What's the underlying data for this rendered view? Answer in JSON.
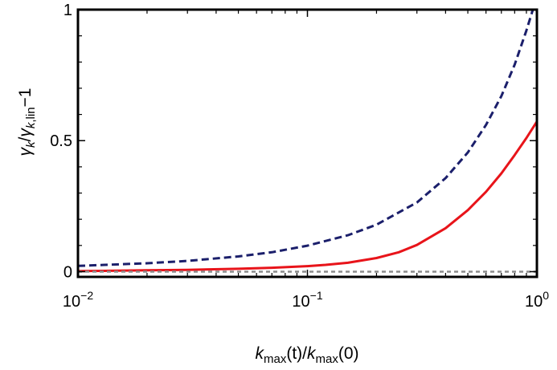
{
  "chart_data": {
    "type": "line",
    "xscale": "log",
    "xlim": [
      0.01,
      1
    ],
    "ylim": [
      -0.02,
      1
    ],
    "grid": false,
    "legend": "none",
    "xlabel": {
      "parts": [
        {
          "text": "k",
          "style": "italic"
        },
        {
          "text": "max",
          "style": "sub"
        },
        {
          "text": "(t)/",
          "style": "normal"
        },
        {
          "text": "k",
          "style": "italic"
        },
        {
          "text": "max",
          "style": "sub"
        },
        {
          "text": "(0)",
          "style": "normal"
        }
      ]
    },
    "ylabel": {
      "parts": [
        {
          "text": "γ",
          "style": "italic"
        },
        {
          "text": "k",
          "style": "sub-italic"
        },
        {
          "text": "/",
          "style": "normal"
        },
        {
          "text": "γ",
          "style": "italic"
        },
        {
          "text": "k",
          "style": "sub-italic"
        },
        {
          "text": ",lin",
          "style": "sub"
        },
        {
          "text": "−1",
          "style": "normal"
        }
      ]
    },
    "xticks": [
      {
        "value": 0.01,
        "base": "10",
        "exp": "−2"
      },
      {
        "value": 0.1,
        "base": "10",
        "exp": "−1"
      },
      {
        "value": 1,
        "base": "10",
        "exp": "0"
      }
    ],
    "yticks": [
      {
        "value": 0,
        "label": "0"
      },
      {
        "value": 0.5,
        "label": "0.5"
      },
      {
        "value": 1,
        "label": "1"
      }
    ],
    "series": [
      {
        "color": "#1b1f6b",
        "dash": "dashed",
        "x": [
          0.01,
          0.02,
          0.03,
          0.05,
          0.07,
          0.1,
          0.15,
          0.2,
          0.3,
          0.4,
          0.5,
          0.6,
          0.7,
          0.8,
          0.9,
          1.0
        ],
        "y": [
          0.022,
          0.032,
          0.041,
          0.058,
          0.074,
          0.099,
          0.139,
          0.179,
          0.264,
          0.357,
          0.455,
          0.56,
          0.67,
          0.79,
          0.92,
          1.05
        ]
      },
      {
        "color": "#e8141a",
        "dash": "solid",
        "x": [
          0.01,
          0.02,
          0.03,
          0.05,
          0.07,
          0.1,
          0.12,
          0.15,
          0.2,
          0.25,
          0.3,
          0.4,
          0.5,
          0.6,
          0.7,
          0.8,
          0.9,
          1.0
        ],
        "y": [
          0.002,
          0.005,
          0.007,
          0.011,
          0.015,
          0.021,
          0.026,
          0.034,
          0.052,
          0.074,
          0.102,
          0.166,
          0.235,
          0.305,
          0.375,
          0.445,
          0.51,
          0.573
        ]
      },
      {
        "color": "#8c8c8c",
        "dash": "dotted",
        "x": [
          0.01,
          1.0
        ],
        "y": [
          0,
          0
        ]
      }
    ]
  }
}
